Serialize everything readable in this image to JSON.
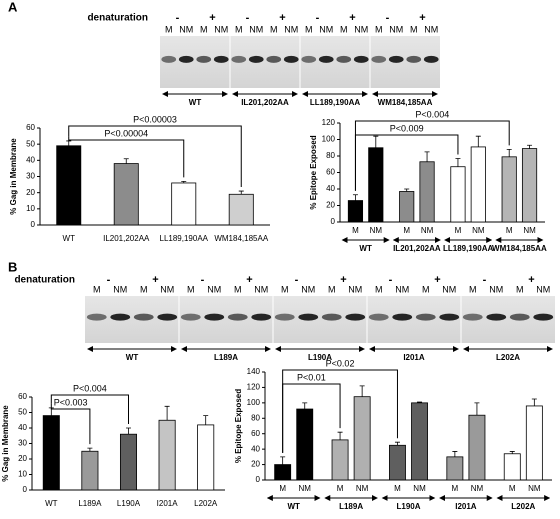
{
  "panels": [
    "A",
    "B"
  ],
  "gels": [
    {
      "label": "denaturation",
      "conditions": [
        "-",
        "+"
      ],
      "lanes": [
        "M",
        "NM"
      ],
      "groups": [
        "WT",
        "IL201,202AA",
        "LL189,190AA",
        "WM184,185AA"
      ]
    },
    {
      "label": "denaturation",
      "conditions": [
        "-",
        "+"
      ],
      "lanes": [
        "M",
        "NM"
      ],
      "groups": [
        "WT",
        "L189A",
        "L190A",
        "I201A",
        "L202A"
      ]
    }
  ],
  "chart_data": [
    {
      "type": "bar",
      "y_label": "% Gag in Membrane",
      "categories": [
        "WT",
        "IL201,202AA",
        "LL189,190AA",
        "WM184,185AA"
      ],
      "values": [
        49,
        38,
        26,
        19
      ],
      "errors": [
        3,
        3,
        1,
        2
      ],
      "colors": [
        "#000000",
        "#8c8c8c",
        "#ffffff",
        "#cfcfcf"
      ],
      "ylim": [
        0,
        60
      ],
      "yticks": [
        0,
        10,
        20,
        30,
        40,
        50,
        60
      ],
      "annotations": [
        {
          "text": "P<0.00003",
          "between": [
            "WT",
            "WM184,185AA"
          ]
        },
        {
          "text": "P<0.00004",
          "between": [
            "WT",
            "LL189,190AA"
          ]
        }
      ]
    },
    {
      "type": "bar",
      "y_label": "% Epitope Exposed",
      "categories": [
        "WT",
        "IL201,202AA",
        "LL189,190AA",
        "WM184,185AA"
      ],
      "series": [
        {
          "name": "M",
          "values": [
            26,
            37,
            67,
            79
          ],
          "errors": [
            7,
            3,
            10,
            9
          ]
        },
        {
          "name": "NM",
          "values": [
            90,
            73,
            91,
            89
          ],
          "errors": [
            14,
            12,
            13,
            4
          ]
        }
      ],
      "colors": [
        "#000000",
        "#8c8c8c",
        "#ffffff",
        "#b5b5b5"
      ],
      "ylim": [
        0,
        120
      ],
      "yticks": [
        0,
        20,
        40,
        60,
        80,
        100,
        120
      ],
      "annotations": [
        {
          "text": "P<0.004",
          "between": [
            "WT",
            "WM184,185AA"
          ]
        },
        {
          "text": "P<0.009",
          "between": [
            "WT",
            "LL189,190AA"
          ]
        }
      ]
    },
    {
      "type": "bar",
      "y_label": "% Gag in Membrane",
      "categories": [
        "WT",
        "L189A",
        "L190A",
        "I201A",
        "L202A"
      ],
      "values": [
        48,
        25,
        36,
        45,
        42
      ],
      "errors": [
        5,
        2,
        4,
        9,
        6
      ],
      "colors": [
        "#000000",
        "#9a9a9a",
        "#5f5f5f",
        "#c4c4c4",
        "#ffffff"
      ],
      "ylim": [
        0,
        60
      ],
      "yticks": [
        0,
        10,
        20,
        30,
        40,
        50,
        60
      ],
      "annotations": [
        {
          "text": "P<0.004",
          "between": [
            "WT",
            "L190A"
          ]
        },
        {
          "text": "P<0.003",
          "between": [
            "WT",
            "L189A"
          ]
        }
      ]
    },
    {
      "type": "bar",
      "y_label": "% Epitope Exposed",
      "categories": [
        "WT",
        "L189A",
        "L190A",
        "I201A",
        "L202A"
      ],
      "series": [
        {
          "name": "M",
          "values": [
            20,
            52,
            45,
            30,
            34
          ],
          "errors": [
            10,
            10,
            4,
            7,
            3
          ]
        },
        {
          "name": "NM",
          "values": [
            92,
            108,
            100,
            84,
            96
          ],
          "errors": [
            8,
            14,
            1,
            16,
            9
          ]
        }
      ],
      "colors": [
        "#000000",
        "#b0b0b0",
        "#5f5f5f",
        "#9a9a9a",
        "#ffffff"
      ],
      "ylim": [
        0,
        140
      ],
      "yticks": [
        0,
        20,
        40,
        60,
        80,
        100,
        120,
        140
      ],
      "annotations": [
        {
          "text": "P<0.02",
          "between": [
            "WT",
            "L190A"
          ]
        },
        {
          "text": "P<0.01",
          "between": [
            "WT",
            "L189A"
          ]
        }
      ]
    }
  ]
}
